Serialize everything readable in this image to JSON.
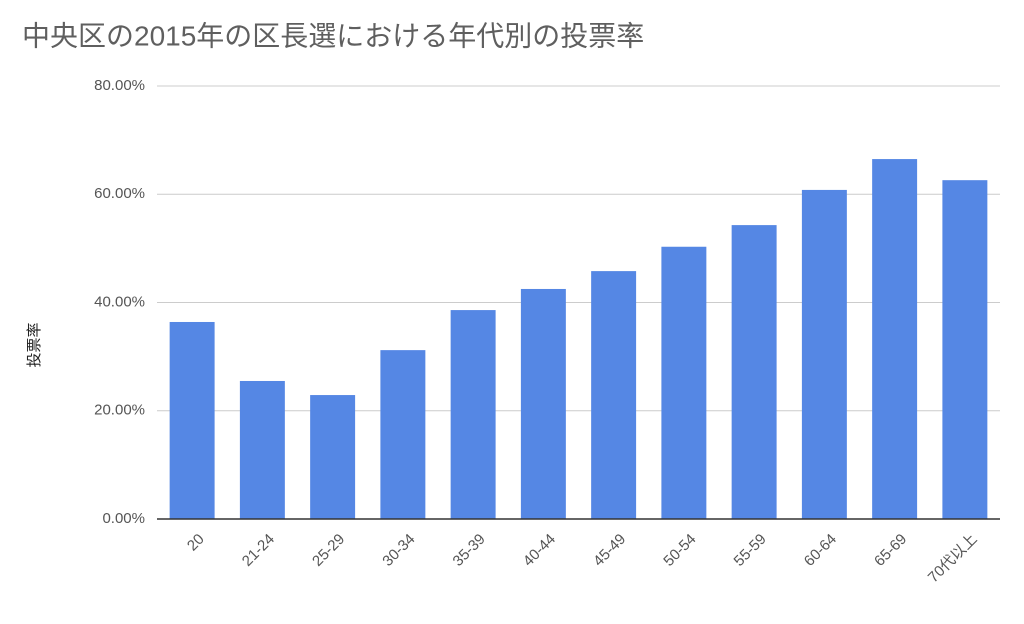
{
  "chart_data": {
    "type": "bar",
    "title": "中央区の2015年の区長選における年代別の投票率",
    "y_label": "投票率",
    "categories": [
      "20",
      "21-24",
      "25-29",
      "30-34",
      "35-39",
      "40-44",
      "45-49",
      "50-54",
      "55-59",
      "60-64",
      "65-69",
      "70代以上"
    ],
    "values": [
      36.4,
      25.5,
      22.9,
      31.2,
      38.6,
      42.5,
      45.8,
      50.3,
      54.3,
      60.8,
      66.5,
      62.6
    ],
    "color": "#5587e4",
    "ylim": [
      0,
      80
    ],
    "yticks": [
      {
        "value": 0,
        "label": "0.00%"
      },
      {
        "value": 20,
        "label": "20.00%"
      },
      {
        "value": 40,
        "label": "40.00%"
      },
      {
        "value": 60,
        "label": "60.00%"
      },
      {
        "value": 80,
        "label": "80.00%"
      }
    ],
    "grid": true
  }
}
